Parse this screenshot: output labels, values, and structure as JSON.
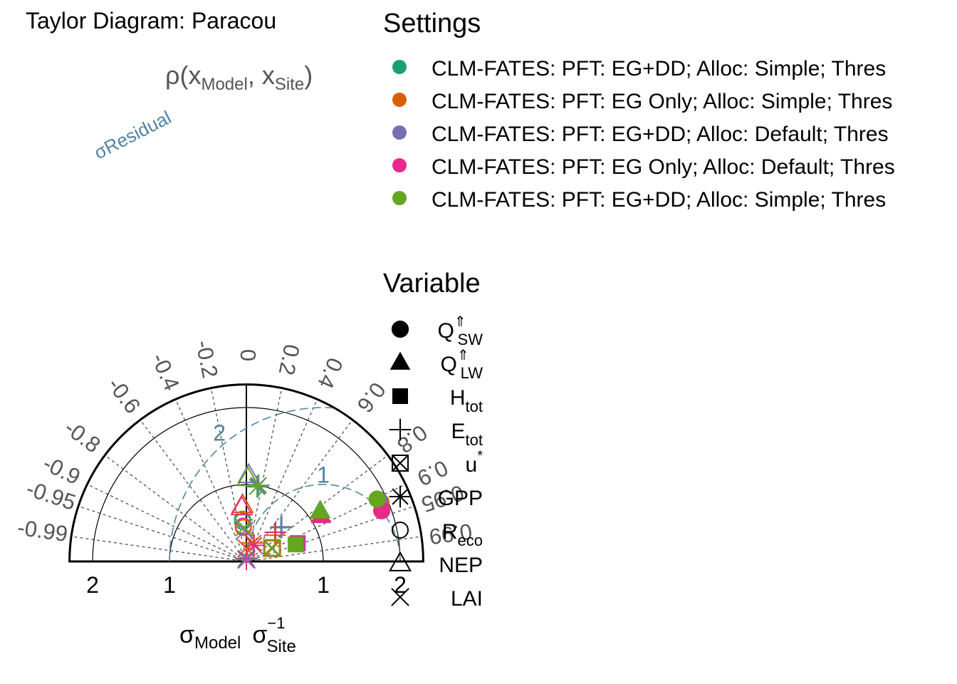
{
  "chart_data": {
    "type": "scatter",
    "subtype": "taylor-diagram-half",
    "title": "Taylor Diagram: Paracou",
    "correlation_axis_label": {
      "base": "ρ(x",
      "sub1": "Model",
      "sep": ", x",
      "sub2": "Site",
      "close": ")"
    },
    "residual_label": "σResidual",
    "x_axis_label": {
      "a": "σ",
      "a_sub": "Model",
      "b": "σ",
      "b_sub": "Site",
      "b_sup": "−1"
    },
    "sd_range": [
      -2.3,
      2.3
    ],
    "sd_arcs": [
      1,
      2
    ],
    "sd_tick_labels": [
      "2",
      "1",
      "1",
      "2"
    ],
    "correlation_ticks": [
      "-0.99",
      "-0.95",
      "-0.9",
      "-0.8",
      "-0.6",
      "-0.4",
      "-0.2",
      "0",
      "0.2",
      "0.4",
      "0.6",
      "0.8",
      "0.9",
      "0.95",
      "0.99"
    ],
    "residual_arc_labels": [
      "1",
      "2"
    ],
    "grid": true,
    "colors": {
      "s1": "#1b9e77",
      "s2": "#d95f02",
      "s3": "#7570b3",
      "s4": "#e7298a",
      "s5": "#66a61e",
      "residual": "#4f86a1",
      "axis_label": "#555555"
    },
    "legend_settings": {
      "title": "Settings",
      "placement": "top-right",
      "items": [
        {
          "label": "CLM-FATES: PFT: EG+DD; Alloc: Simple; Thres",
          "color": "#1b9e77"
        },
        {
          "label": "CLM-FATES: PFT: EG Only; Alloc: Simple; Thres",
          "color": "#d95f02"
        },
        {
          "label": "CLM-FATES: PFT: EG+DD; Alloc: Default; Thres",
          "color": "#7570b3"
        },
        {
          "label": "CLM-FATES: PFT: EG Only; Alloc: Default; Thres",
          "color": "#e7298a"
        },
        {
          "label": "CLM-FATES: PFT: EG+DD; Alloc: Simple; Thres",
          "color": "#66a61e"
        }
      ]
    },
    "legend_variables": {
      "title": "Variable",
      "items": [
        {
          "main": "Q",
          "sub": "SW",
          "sup": "⇑",
          "marker": "filled-circle"
        },
        {
          "main": "Q",
          "sub": "LW",
          "sup": "⇑",
          "marker": "filled-triangle"
        },
        {
          "main": "H",
          "sub": "tot",
          "sup": "",
          "marker": "filled-square"
        },
        {
          "main": "E",
          "sub": "tot",
          "sup": "",
          "marker": "plus"
        },
        {
          "main": "u",
          "sub": "",
          "sup": "*",
          "marker": "boxed-x"
        },
        {
          "main": "GPP",
          "sub": "",
          "sup": "",
          "marker": "asterisk"
        },
        {
          "main": "R",
          "sub": "eco",
          "sup": "",
          "marker": "open-circle"
        },
        {
          "main": "NEP",
          "sub": "",
          "sup": "",
          "marker": "open-triangle"
        },
        {
          "main": "LAI",
          "sub": "",
          "sup": "",
          "marker": "x"
        }
      ]
    },
    "points": [
      {
        "variable": "Q_SW",
        "setting": 1,
        "x": 1.72,
        "y": 0.8
      },
      {
        "variable": "Q_SW",
        "setting": 2,
        "x": 1.75,
        "y": 0.77
      },
      {
        "variable": "Q_SW",
        "setting": 3,
        "x": 1.73,
        "y": 0.79
      },
      {
        "variable": "Q_SW",
        "setting": 4,
        "x": 1.76,
        "y": 0.66
      },
      {
        "variable": "Q_SW",
        "setting": 5,
        "x": 1.7,
        "y": 0.81
      },
      {
        "variable": "Q_LW",
        "setting": 2,
        "x": 0.97,
        "y": 0.6
      },
      {
        "variable": "Q_LW",
        "setting": 4,
        "x": 0.97,
        "y": 0.59
      },
      {
        "variable": "Q_LW",
        "setting": 1,
        "x": 0.96,
        "y": 0.66
      },
      {
        "variable": "Q_LW",
        "setting": 5,
        "x": 0.96,
        "y": 0.65
      },
      {
        "variable": "H_tot",
        "setting": 3,
        "x": 0.67,
        "y": 0.24
      },
      {
        "variable": "H_tot",
        "setting": 4,
        "x": 0.66,
        "y": 0.23
      },
      {
        "variable": "H_tot",
        "setting": 5,
        "x": 0.64,
        "y": 0.22
      },
      {
        "variable": "E_tot",
        "setting": 1,
        "x": 0.45,
        "y": 0.44
      },
      {
        "variable": "E_tot",
        "setting": 3,
        "x": 0.46,
        "y": 0.45
      },
      {
        "variable": "E_tot",
        "setting": 2,
        "x": 0.37,
        "y": 0.34
      },
      {
        "variable": "E_tot",
        "setting": 4,
        "x": 0.38,
        "y": 0.38
      },
      {
        "variable": "u_star",
        "setting": 1,
        "x": 0.33,
        "y": 0.17
      },
      {
        "variable": "u_star",
        "setting": 2,
        "x": 0.34,
        "y": 0.17
      },
      {
        "variable": "u_star",
        "setting": 5,
        "x": 0.33,
        "y": 0.18
      },
      {
        "variable": "GPP",
        "setting": 1,
        "x": 0.14,
        "y": 0.97
      },
      {
        "variable": "GPP",
        "setting": 3,
        "x": 0.16,
        "y": 0.99
      },
      {
        "variable": "GPP",
        "setting": 5,
        "x": 0.15,
        "y": 0.98
      },
      {
        "variable": "GPP",
        "setting": 2,
        "x": 0.09,
        "y": 0.24
      },
      {
        "variable": "GPP",
        "setting": 4,
        "x": 0.1,
        "y": 0.21
      },
      {
        "variable": "GPP",
        "setting": 1,
        "x": 0.0,
        "y": 0.04
      },
      {
        "variable": "GPP",
        "setting": 4,
        "x": 0.0,
        "y": 0.03
      },
      {
        "variable": "R_eco",
        "setting": 5,
        "x": -0.05,
        "y": 0.55
      },
      {
        "variable": "R_eco",
        "setting": 1,
        "x": -0.05,
        "y": 0.52
      },
      {
        "variable": "R_eco",
        "setting": 4,
        "x": -0.04,
        "y": 0.46
      },
      {
        "variable": "R_eco",
        "setting": 2,
        "x": -0.04,
        "y": 0.44
      },
      {
        "variable": "NEP",
        "setting": 3,
        "x": 0.03,
        "y": 1.12
      },
      {
        "variable": "NEP",
        "setting": 5,
        "x": 0.02,
        "y": 1.08
      },
      {
        "variable": "NEP",
        "setting": 2,
        "x": -0.05,
        "y": 0.73
      },
      {
        "variable": "NEP",
        "setting": 4,
        "x": -0.06,
        "y": 0.7
      },
      {
        "variable": "LAI",
        "setting": 3,
        "x": -0.02,
        "y": 0.4
      },
      {
        "variable": "LAI",
        "setting": 5,
        "x": -0.03,
        "y": 0.44
      },
      {
        "variable": "LAI",
        "setting": 2,
        "x": 0.0,
        "y": 0.17
      },
      {
        "variable": "LAI",
        "setting": 4,
        "x": 0.0,
        "y": 0.03
      },
      {
        "variable": "LAI",
        "setting": 3,
        "x": 0.0,
        "y": 0.02
      }
    ]
  }
}
